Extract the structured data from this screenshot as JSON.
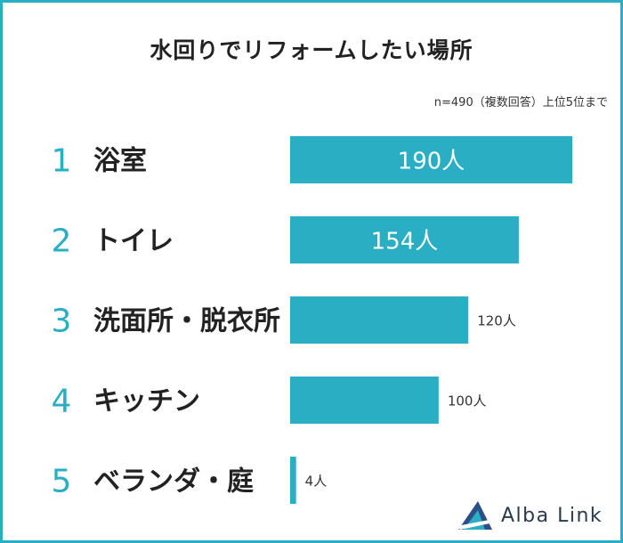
{
  "title": "水回りでリフォームしたい場所",
  "note": "n=490（複数回答）上位5位まで",
  "brand": "Alba Link",
  "colors": {
    "accent": "#29aec4",
    "text": "#222222",
    "border": "#29aec4"
  },
  "chart_data": {
    "type": "bar",
    "orientation": "horizontal",
    "ranks": [
      "1",
      "2",
      "3",
      "4",
      "5"
    ],
    "categories": [
      "浴室",
      "トイレ",
      "洗面所・脱衣所",
      "キッチン",
      "ベランダ・庭"
    ],
    "values": [
      190,
      154,
      120,
      100,
      4
    ],
    "value_labels": [
      "190人",
      "154人",
      "120人",
      "100人",
      "4人"
    ],
    "unit": "人",
    "n": 490,
    "label_inside": [
      true,
      true,
      false,
      false,
      false
    ]
  }
}
